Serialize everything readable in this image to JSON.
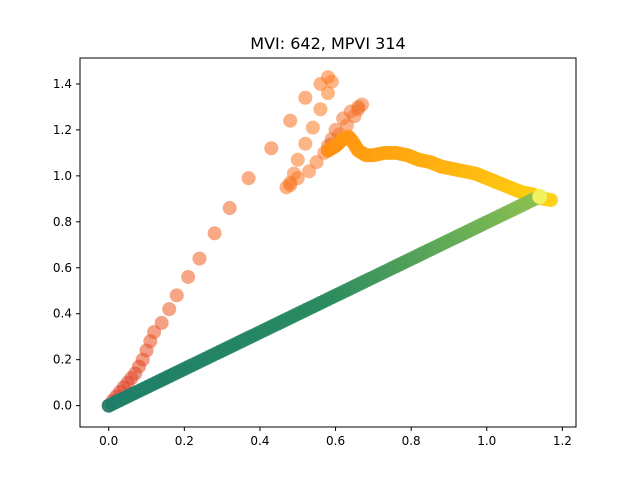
{
  "chart_data": {
    "type": "scatter",
    "title": "MVI: 642, MPVI 314",
    "xlabel": "",
    "ylabel": "",
    "xlim": [
      -0.076,
      1.236
    ],
    "ylim": [
      -0.093,
      1.513
    ],
    "xticks": [
      "0.0",
      "0.2",
      "0.4",
      "0.6",
      "0.8",
      "1.0",
      "1.2"
    ],
    "yticks": [
      "0.0",
      "0.2",
      "0.4",
      "0.6",
      "0.8",
      "1.0",
      "1.2",
      "1.4"
    ],
    "grid": false,
    "series": [
      {
        "color_start": "#d73020",
        "color_mid": "#ff7a20",
        "color_end": "#f07030",
        "opacity": 0.55,
        "points": [
          [
            0.0,
            0.0
          ],
          [
            0.01,
            0.02
          ],
          [
            0.02,
            0.04
          ],
          [
            0.03,
            0.06
          ],
          [
            0.04,
            0.08
          ],
          [
            0.05,
            0.1
          ],
          [
            0.06,
            0.12
          ],
          [
            0.07,
            0.14
          ],
          [
            0.08,
            0.17
          ],
          [
            0.09,
            0.2
          ],
          [
            0.1,
            0.24
          ],
          [
            0.11,
            0.28
          ],
          [
            0.12,
            0.32
          ],
          [
            0.14,
            0.36
          ],
          [
            0.16,
            0.42
          ],
          [
            0.18,
            0.48
          ],
          [
            0.21,
            0.56
          ],
          [
            0.24,
            0.64
          ],
          [
            0.28,
            0.75
          ],
          [
            0.32,
            0.86
          ],
          [
            0.37,
            0.99
          ],
          [
            0.43,
            1.12
          ],
          [
            0.48,
            1.24
          ],
          [
            0.52,
            1.34
          ],
          [
            0.56,
            1.4
          ],
          [
            0.58,
            1.43
          ],
          [
            0.59,
            1.41
          ],
          [
            0.58,
            1.36
          ],
          [
            0.56,
            1.29
          ],
          [
            0.54,
            1.21
          ],
          [
            0.52,
            1.14
          ],
          [
            0.5,
            1.07
          ],
          [
            0.49,
            1.01
          ],
          [
            0.48,
            0.96
          ],
          [
            0.47,
            0.95
          ],
          [
            0.48,
            0.97
          ],
          [
            0.5,
            0.99
          ],
          [
            0.53,
            1.02
          ],
          [
            0.55,
            1.06
          ],
          [
            0.57,
            1.1
          ],
          [
            0.59,
            1.14
          ],
          [
            0.61,
            1.18
          ],
          [
            0.63,
            1.22
          ],
          [
            0.65,
            1.26
          ],
          [
            0.66,
            1.29
          ],
          [
            0.67,
            1.31
          ],
          [
            0.66,
            1.3
          ],
          [
            0.64,
            1.28
          ],
          [
            0.62,
            1.25
          ],
          [
            0.6,
            1.2
          ],
          [
            0.59,
            1.16
          ],
          [
            0.58,
            1.13
          ],
          [
            0.58,
            1.11
          ]
        ]
      },
      {
        "color_start": "#ff9010",
        "color_end": "#ffd010",
        "opacity": 0.85,
        "points": [
          [
            0.58,
            1.11
          ],
          [
            0.6,
            1.13
          ],
          [
            0.62,
            1.16
          ],
          [
            0.635,
            1.17
          ],
          [
            0.645,
            1.15
          ],
          [
            0.66,
            1.11
          ],
          [
            0.68,
            1.09
          ],
          [
            0.7,
            1.09
          ],
          [
            0.73,
            1.1
          ],
          [
            0.76,
            1.1
          ],
          [
            0.79,
            1.09
          ],
          [
            0.82,
            1.07
          ],
          [
            0.85,
            1.06
          ],
          [
            0.88,
            1.04
          ],
          [
            0.91,
            1.03
          ],
          [
            0.94,
            1.02
          ],
          [
            0.97,
            1.01
          ],
          [
            1.0,
            0.99
          ],
          [
            1.03,
            0.97
          ],
          [
            1.06,
            0.95
          ],
          [
            1.09,
            0.93
          ],
          [
            1.12,
            0.92
          ],
          [
            1.15,
            0.9
          ],
          [
            1.17,
            0.895
          ]
        ]
      },
      {
        "color_start": "#1e7e6a",
        "color_mid": "#2a8a60",
        "color_end": "#8ac050",
        "opacity": 0.9,
        "points": [
          [
            0.0,
            0.0
          ],
          [
            1.14,
            0.91
          ]
        ]
      }
    ],
    "highlight_point": {
      "x": 1.14,
      "y": 0.91,
      "color": "#f0f060"
    }
  }
}
